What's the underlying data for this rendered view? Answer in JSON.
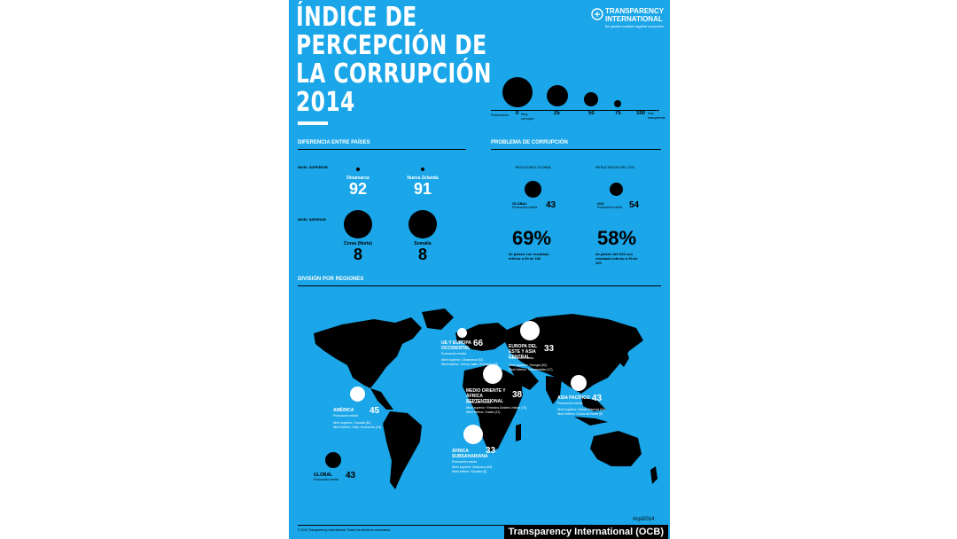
{
  "title": "ÍNDICE DE\nPERCEPCIÓN DE\nLA CORRUPCIÓN\n2014",
  "logo": {
    "name_line1": "TRANSPARENCY",
    "name_line2": "INTERNATIONAL",
    "tagline": "the global coalition against corruption"
  },
  "scale": {
    "label": "Puntuación",
    "ticks": [
      "0",
      "25",
      "50",
      "75",
      "100"
    ],
    "tick0_note": "Muy corrupto",
    "tick100_note": "Muy transparente"
  },
  "differences": {
    "heading": "DIFERENCIA ENTRE PAÍSES",
    "top_label": "NIVEL SUPERIOR",
    "bottom_label": "NIVEL INFERIOR",
    "top": [
      {
        "country": "Dinamarca",
        "score": "92"
      },
      {
        "country": "Nueva Zelanda",
        "score": "91"
      }
    ],
    "bottom": [
      {
        "country": "Corea (Norte)",
        "score": "8"
      },
      {
        "country": "Somalia",
        "score": "8"
      }
    ]
  },
  "problem": {
    "heading": "PROBLEMA DE CORRUPCIÓN",
    "global": {
      "header": "RESULTADO GLOBAL",
      "label": "GLOBAL",
      "sub": "Puntuación media",
      "score": "43",
      "pct": "69%",
      "pct_desc": "de países con resultado inferior a 50 de 100"
    },
    "g20": {
      "header": "RESULTADOS DEL G20",
      "label": "G20",
      "sub": "Puntuación media",
      "score": "54",
      "pct": "58%",
      "pct_desc": "de países del G20 con resultado inferior a 50 de 100"
    }
  },
  "regions": {
    "heading": "DIVISIÓN POR REGIONES",
    "items": [
      {
        "name": "UE Y EUROPA OCCIDENTAL",
        "sub": "Puntuación media",
        "score": "66",
        "detail1": "Nivel superior: Dinamarca (92)",
        "detail2": "Nivel inferior: Grecia, Italia, Rumania (43)"
      },
      {
        "name": "EUROPA DEL ESTE Y ASIA CENTRAL",
        "sub": "Puntuación media",
        "score": "33",
        "detail1": "Nivel superior: Georgia (52)",
        "detail2": "Nivel inferior: Turkmenistán (17)"
      },
      {
        "name": "MEDIO ORIENTE Y ÁFRICA SEPTENTRIONAL",
        "sub": "Puntuación media",
        "score": "38",
        "detail1": "Nivel superior: Emiratos Árabes Unidos (70)",
        "detail2": "Nivel inferior: Sudán (11)"
      },
      {
        "name": "ASIA PACÍFICO",
        "sub": "Puntuación media",
        "score": "43",
        "detail1": "Nivel superior: Nueva Zelanda (91)",
        "detail2": "Nivel inferior: Corea del Norte (8)"
      },
      {
        "name": "AMÉRICA",
        "sub": "Puntuación media",
        "score": "45",
        "detail1": "Nivel superior: Canadá (81)",
        "detail2": "Nivel inferior: Haití, Venezuela (19)"
      },
      {
        "name": "ÁFRICA SUBSAHARIANA",
        "sub": "Puntuación media",
        "score": "33",
        "detail1": "Nivel superior: Botsuana (63)",
        "detail2": "Nivel inferior: Somalia (8)"
      }
    ],
    "global": {
      "label": "GLOBAL",
      "sub": "Puntuación media",
      "score": "43"
    }
  },
  "footer": {
    "copyright": "© 2014 Transparency International. Todos los derechos reservados.",
    "hashtag": "#cpi2014"
  },
  "caption": "Transparency International (OCB)",
  "colors": {
    "poster_bg": "#1aa6e8",
    "map": "#000000",
    "text_light": "#ffffff"
  }
}
